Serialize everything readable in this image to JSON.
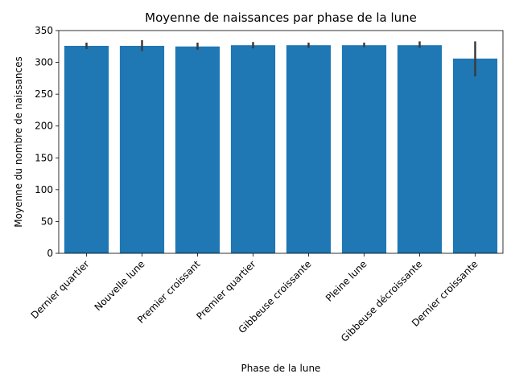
{
  "chart_data": {
    "type": "bar",
    "title": "Moyenne de naissances par phase de la lune",
    "xlabel": "Phase de la lune",
    "ylabel": "Moyenne du nombre de naissances",
    "ylim": [
      0,
      350
    ],
    "yticks": [
      0,
      50,
      100,
      150,
      200,
      250,
      300,
      350
    ],
    "categories": [
      "Dernier quartier",
      "Nouvelle lune",
      "Premier croissant",
      "Premier quartier",
      "Gibbeuse croissante",
      "Pleine lune",
      "Gibbeuse décroissante",
      "Dernier croissante"
    ],
    "values": [
      326,
      326,
      325,
      327,
      327,
      327,
      327,
      306
    ],
    "error_low": [
      321,
      318,
      320,
      322,
      323,
      324,
      323,
      278
    ],
    "error_high": [
      331,
      335,
      331,
      332,
      331,
      331,
      333,
      333
    ],
    "bar_color": "#1f77b4",
    "error_color": "#3b3b3b",
    "grid": false,
    "legend": "none"
  }
}
